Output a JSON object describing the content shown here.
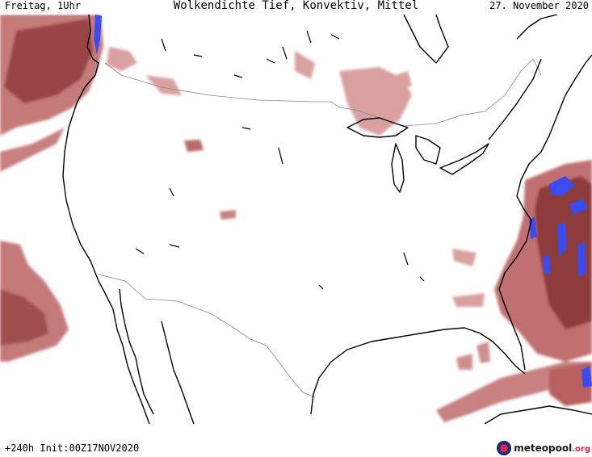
{
  "header": {
    "valid_label": "Freitag, 1Uhr",
    "title": "Wolkendichte  Tief, Konvektiv, Mittel",
    "date": "27. November 2020"
  },
  "footer": {
    "run_info": "+240h Init:00Z17NOV2020",
    "logo_name": "meteopool",
    "logo_tld": ".org"
  },
  "colors": {
    "cloud_light": "#d99a9a",
    "cloud_mid": "#c06a6a",
    "cloud_dark": "#8e3a3a",
    "convective": "#3a4cf0",
    "coast": "#000000",
    "border": "#888888"
  }
}
